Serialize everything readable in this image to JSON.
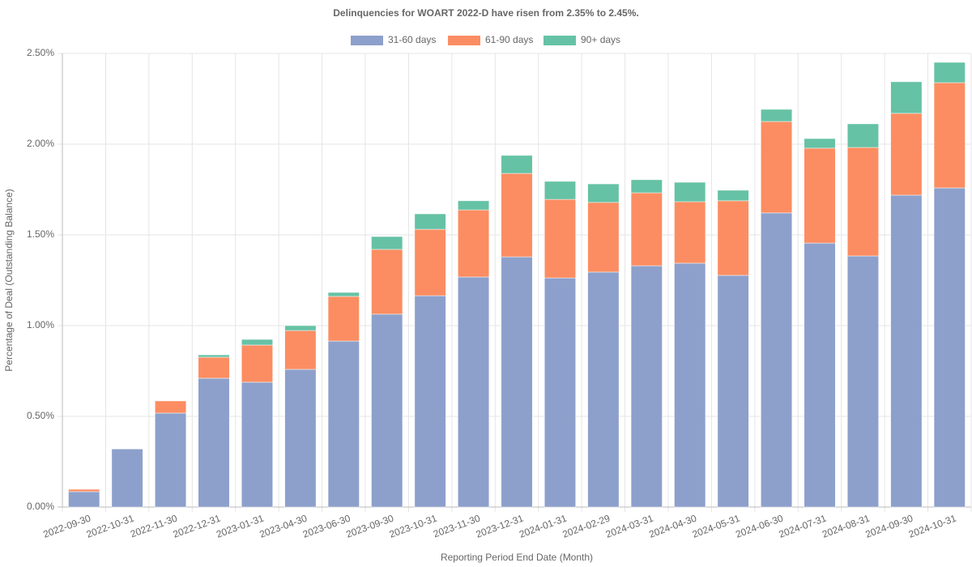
{
  "chart_data": {
    "type": "stacked_bar",
    "title": "Delinquencies for WOART 2022-D have risen from 2.35% to 2.45%.",
    "x_label": "Reporting Period End Date (Month)",
    "y_label": "Percentage of Deal (Outstanding Balance)",
    "categories": [
      "2022-09-30",
      "2022-10-31",
      "2022-11-30",
      "2022-12-31",
      "2023-01-31",
      "2023-04-30",
      "2023-06-30",
      "2023-09-30",
      "2023-10-31",
      "2023-11-30",
      "2023-12-31",
      "2024-01-31",
      "2024-02-29",
      "2024-03-31",
      "2024-04-30",
      "2024-05-31",
      "2024-06-30",
      "2024-07-31",
      "2024-08-31",
      "2024-09-30",
      "2024-10-31"
    ],
    "series": [
      {
        "name": "31-60 days",
        "color": "#8da0cb",
        "values": [
          0.085,
          0.32,
          0.518,
          0.71,
          0.688,
          0.759,
          0.915,
          1.063,
          1.165,
          1.268,
          1.379,
          1.263,
          1.295,
          1.33,
          1.344,
          1.277,
          1.621,
          1.455,
          1.384,
          1.719,
          1.759
        ]
      },
      {
        "name": "61-90 days",
        "color": "#fc8d62",
        "values": [
          0.013,
          0,
          0.067,
          0.116,
          0.205,
          0.214,
          0.246,
          0.357,
          0.366,
          0.37,
          0.46,
          0.433,
          0.384,
          0.402,
          0.339,
          0.411,
          0.504,
          0.523,
          0.598,
          0.451,
          0.58
        ]
      },
      {
        "name": "90+ days",
        "color": "#66c2a5",
        "values": [
          0,
          0,
          0,
          0.013,
          0.031,
          0.027,
          0.022,
          0.071,
          0.085,
          0.05,
          0.099,
          0.099,
          0.102,
          0.072,
          0.107,
          0.058,
          0.067,
          0.053,
          0.13,
          0.174,
          0.112
        ]
      }
    ],
    "ylim": [
      0,
      2.5
    ],
    "yticks": [
      {
        "value": 0,
        "label": "0.00%"
      },
      {
        "value": 0.5,
        "label": "0.50%"
      },
      {
        "value": 1,
        "label": "1.00%"
      },
      {
        "value": 1.5,
        "label": "1.50%"
      },
      {
        "value": 2,
        "label": "2.00%"
      },
      {
        "value": 2.5,
        "label": "2.50%"
      }
    ],
    "grid": true,
    "legend": "top"
  }
}
